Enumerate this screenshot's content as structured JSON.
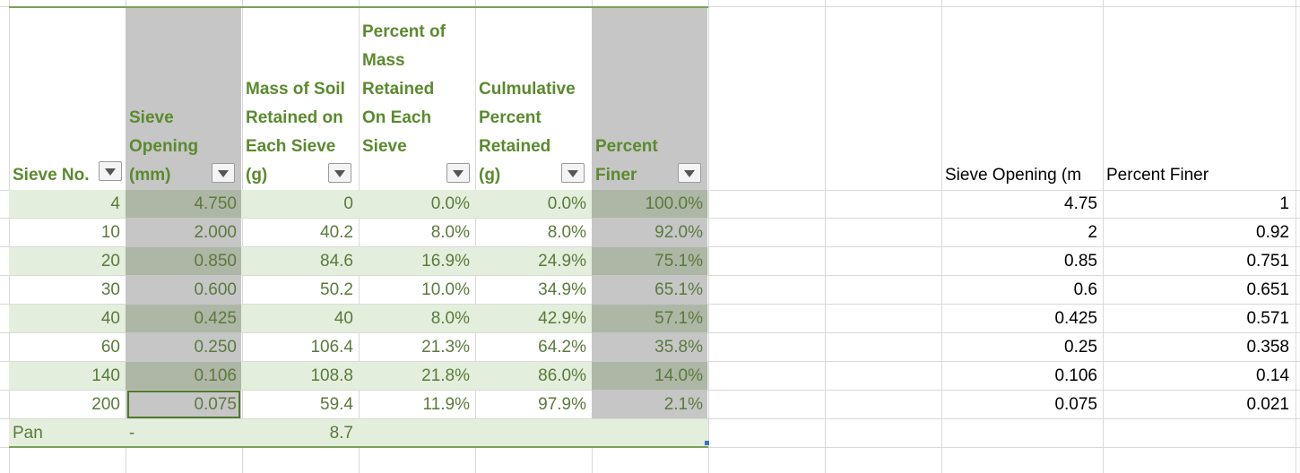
{
  "table": {
    "headers": [
      "Sieve No.",
      "Sieve\nOpening\n(mm)",
      "Mass of Soil\nRetained on\nEach Sieve\n(g)",
      "Percent of\nMass\nRetained\nOn Each\nSieve",
      "Culmulative\nPercent\nRetained\n(g)",
      "Percent\nFiner"
    ],
    "rows": [
      [
        "4",
        "4.750",
        "0",
        "0.0%",
        "0.0%",
        "100.0%"
      ],
      [
        "10",
        "2.000",
        "40.2",
        "8.0%",
        "8.0%",
        "92.0%"
      ],
      [
        "20",
        "0.850",
        "84.6",
        "16.9%",
        "24.9%",
        "75.1%"
      ],
      [
        "30",
        "0.600",
        "50.2",
        "10.0%",
        "34.9%",
        "65.1%"
      ],
      [
        "40",
        "0.425",
        "40",
        "8.0%",
        "42.9%",
        "57.1%"
      ],
      [
        "60",
        "0.250",
        "106.4",
        "21.3%",
        "64.2%",
        "35.8%"
      ],
      [
        "140",
        "0.106",
        "108.8",
        "21.8%",
        "86.0%",
        "14.0%"
      ],
      [
        "200",
        "0.075",
        "59.4",
        "11.9%",
        "97.9%",
        "2.1%"
      ]
    ],
    "pan": {
      "label": "Pan",
      "opening": "-",
      "mass": "8.7"
    }
  },
  "side_table": {
    "headers": [
      "Sieve Opening (m",
      "Percent Finer"
    ],
    "rows": [
      [
        "4.75",
        "1"
      ],
      [
        "2",
        "0.92"
      ],
      [
        "0.85",
        "0.751"
      ],
      [
        "0.6",
        "0.651"
      ],
      [
        "0.425",
        "0.571"
      ],
      [
        "0.25",
        "0.358"
      ],
      [
        "0.106",
        "0.14"
      ],
      [
        "0.075",
        "0.021"
      ]
    ]
  },
  "colors": {
    "band": "#e3efdc",
    "header_text": "#5a8a2e",
    "cell_text": "#5a7a3c",
    "highlight": "#c6c6c6"
  }
}
